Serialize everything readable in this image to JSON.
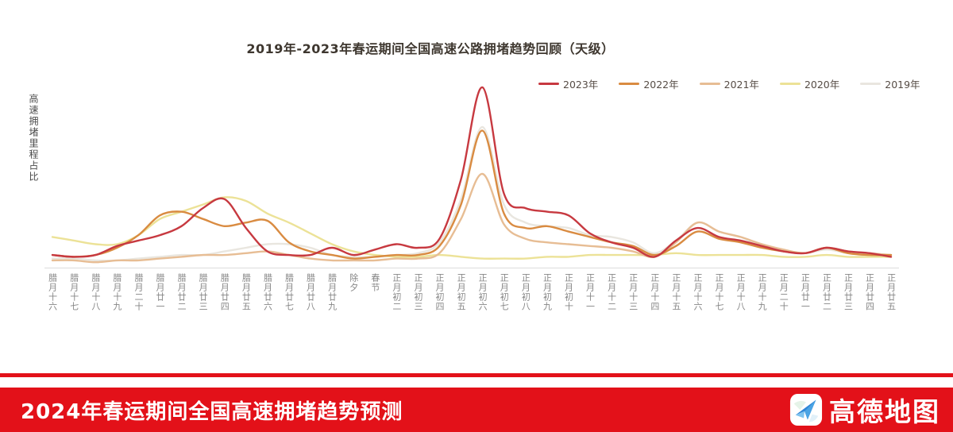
{
  "title": "2019年-2023年春运期间全国高速公路拥堵趋势回顾（天级）",
  "y_axis_label": "高速拥堵里程占比",
  "banner": {
    "text": "2024年春运期间全国高速拥堵趋势预测",
    "background": "#e31119"
  },
  "logo": {
    "text": "高德地图",
    "icon": "amap-paper-plane-icon"
  },
  "chart_data": {
    "type": "line",
    "title": "2019年-2023年春运期间全国高速公路拥堵趋势回顾（天级）",
    "xlabel": "",
    "ylabel": "高速拥堵里程占比",
    "ylim": [
      0,
      105
    ],
    "grid": false,
    "legend_position": "top-right",
    "y_axis_numeric_labels": false,
    "unit": "relative congestion-mileage index, 0-100 (y axis unlabeled in source)",
    "x_categories": [
      "腊月十六",
      "腊月十七",
      "腊月十八",
      "腊月十九",
      "腊月二十",
      "腊月廿一",
      "腊月廿二",
      "腊月廿三",
      "腊月廿四",
      "腊月廿五",
      "腊月廿六",
      "腊月廿七",
      "腊月廿八",
      "腊月廿九",
      "除夕",
      "春节",
      "正月初二",
      "正月初三",
      "正月初四",
      "正月初五",
      "正月初六",
      "正月初七",
      "正月初八",
      "正月初九",
      "正月初十",
      "正月十一",
      "正月十二",
      "正月十三",
      "正月十四",
      "正月十五",
      "正月十六",
      "正月十七",
      "正月十八",
      "正月十九",
      "正月二十",
      "正月廿一",
      "正月廿二",
      "正月廿三",
      "正月廿四",
      "正月廿五"
    ],
    "series": [
      {
        "name": "2023年",
        "color": "#c73940",
        "values": [
          7,
          6,
          7,
          12,
          15,
          18,
          23,
          33,
          38,
          22,
          9,
          7,
          7,
          11,
          7,
          10,
          13,
          11,
          16,
          49,
          100,
          41,
          33,
          31,
          29,
          19,
          14,
          11,
          6,
          15,
          22,
          17,
          15,
          12,
          9,
          8,
          11,
          9,
          8,
          6
        ]
      },
      {
        "name": "2022年",
        "color": "#d98b41",
        "values": [
          7,
          6,
          7,
          11,
          18,
          29,
          31,
          27,
          23,
          25,
          26,
          14,
          9,
          7,
          5,
          6,
          7,
          7,
          12,
          35,
          76,
          30,
          22,
          23,
          20,
          17,
          14,
          12,
          7,
          12,
          20,
          16,
          14,
          11,
          9,
          8,
          11,
          8,
          7,
          7
        ]
      },
      {
        "name": "2021年",
        "color": "#e7bd94",
        "values": [
          4,
          4,
          3,
          4,
          4,
          5,
          6,
          7,
          7,
          8,
          9,
          7,
          5,
          4,
          4,
          4,
          5,
          5,
          8,
          27,
          52,
          24,
          16,
          14,
          13,
          12,
          11,
          9,
          6,
          14,
          25,
          20,
          17,
          13,
          10,
          8,
          11,
          9,
          8,
          7
        ]
      },
      {
        "name": "2020年",
        "color": "#ece297",
        "values": [
          17,
          15,
          13,
          13,
          18,
          27,
          31,
          35,
          39,
          37,
          30,
          25,
          19,
          13,
          9,
          7,
          6,
          6,
          7,
          6,
          5,
          5,
          5,
          6,
          6,
          7,
          7,
          7,
          7,
          8,
          7,
          7,
          7,
          7,
          6,
          6,
          7,
          6,
          6,
          6
        ]
      },
      {
        "name": "2019年",
        "color": "#e9e6df",
        "values": [
          5,
          5,
          4,
          4,
          5,
          6,
          7,
          7,
          9,
          11,
          13,
          13,
          11,
          7,
          6,
          6,
          7,
          8,
          14,
          38,
          78,
          35,
          25,
          23,
          22,
          18,
          17,
          14,
          8,
          15,
          25,
          20,
          17,
          12,
          9,
          8,
          10,
          8,
          7,
          7
        ]
      }
    ]
  }
}
